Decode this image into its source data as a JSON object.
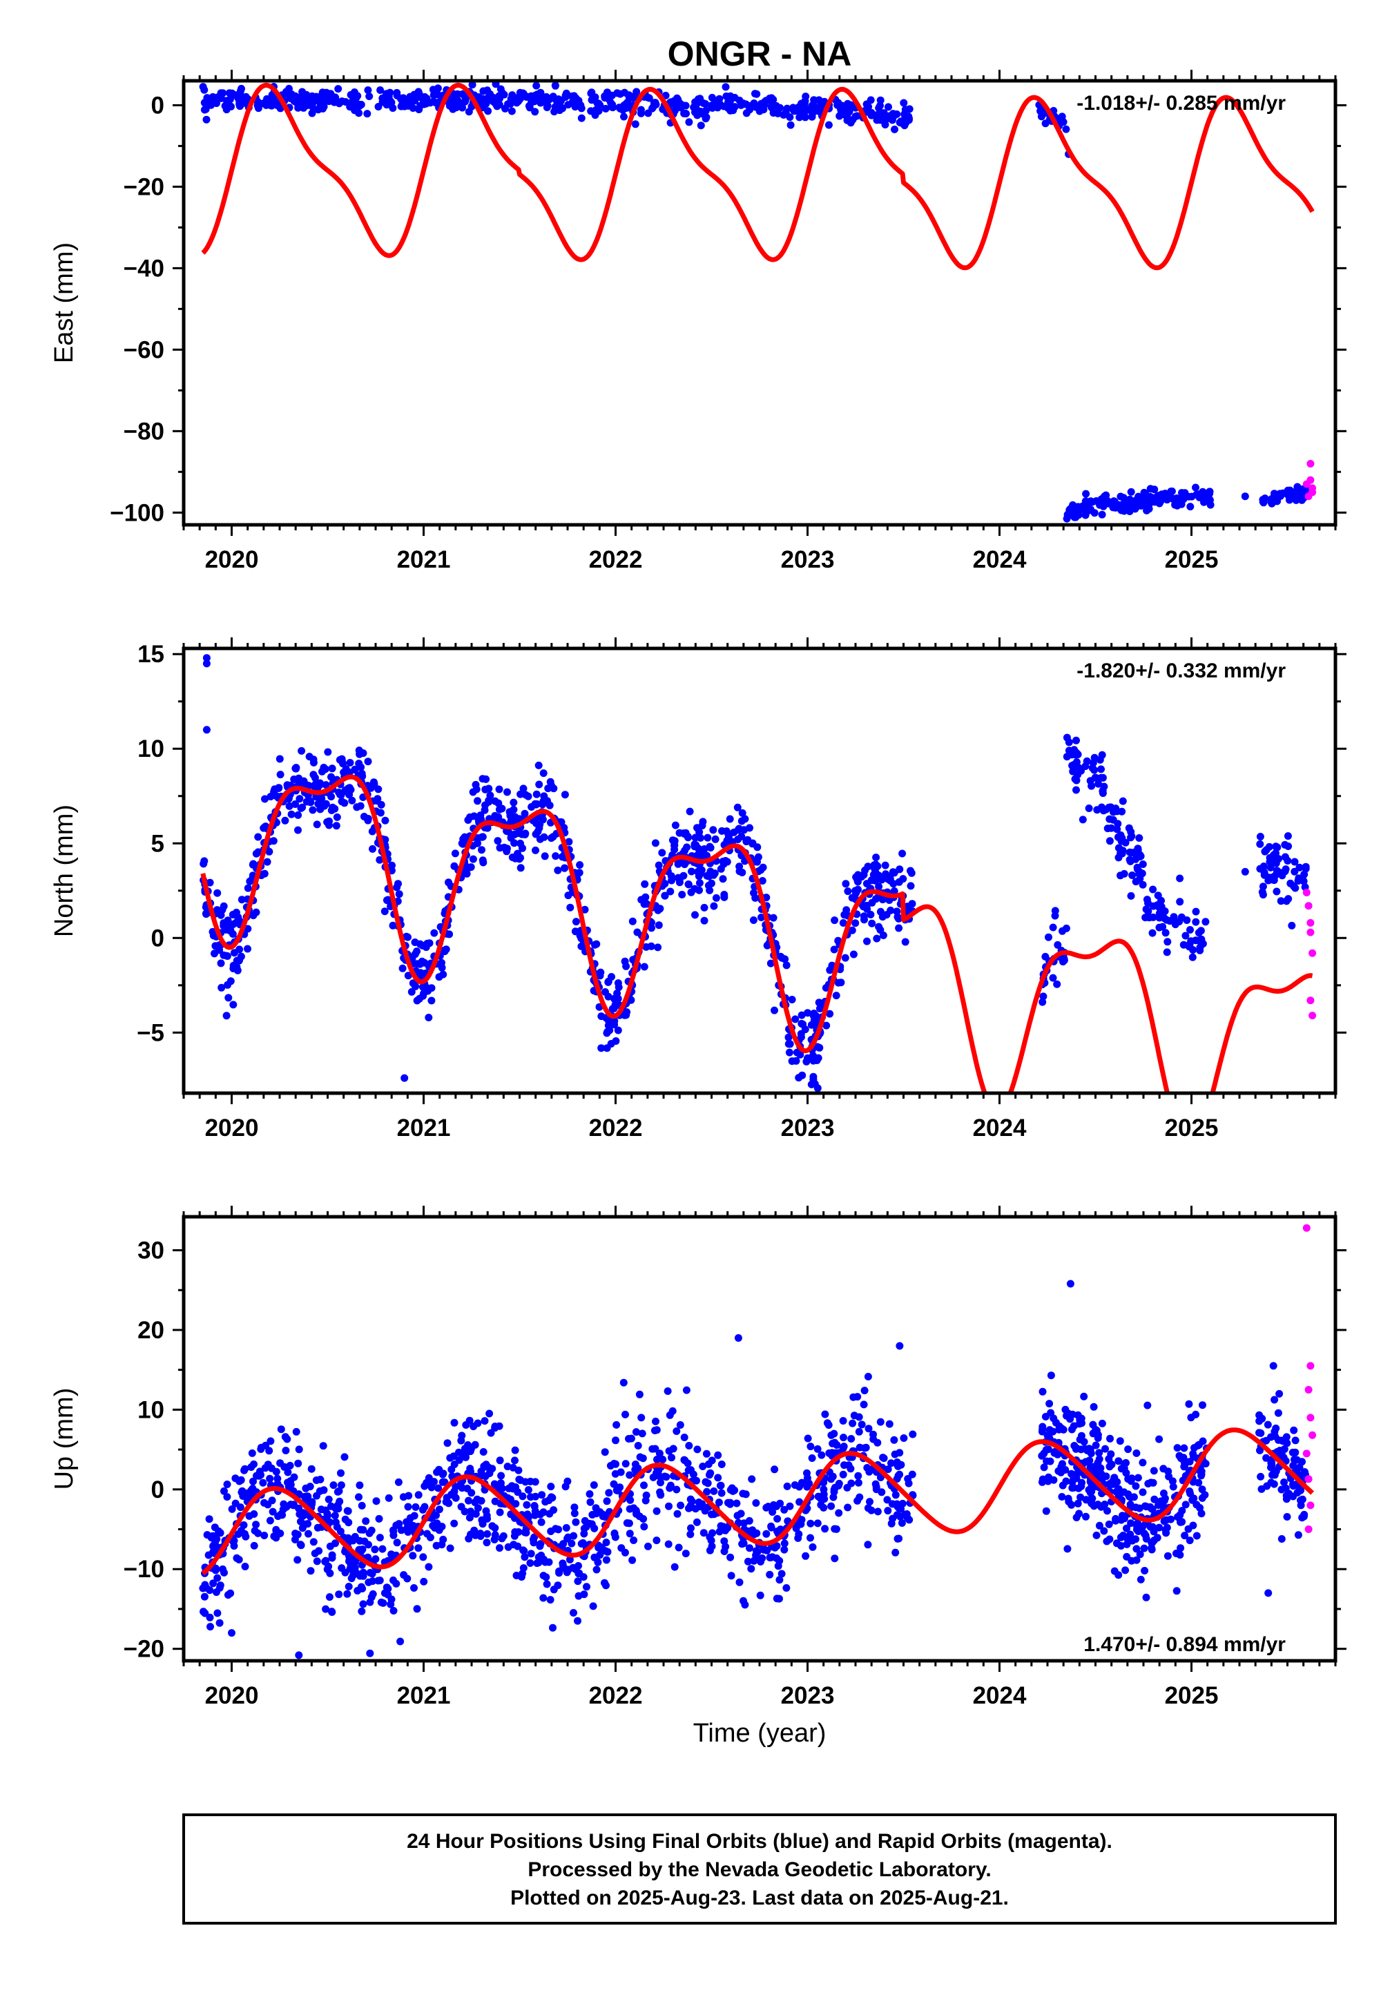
{
  "title": "ONGR - NA",
  "xlabel": "Time (year)",
  "footer": [
    "24 Hour Positions Using Final Orbits (blue) and Rapid Orbits (magenta).",
    "Processed by the Nevada Geodetic Laboratory.",
    "Plotted on 2025-Aug-23. Last data on 2025-Aug-21."
  ],
  "colors": {
    "final": "#0000ff",
    "rapid": "#ff00ff",
    "model": "#ff0000",
    "frame": "#000000"
  },
  "chart_data": [
    {
      "type": "scatter",
      "panel": "east",
      "ylabel": "East (mm)",
      "rate": "-1.018+/- 0.285 mm/yr",
      "rate_position": "top-right",
      "xlim": [
        2019.75,
        2025.75
      ],
      "ylim": [
        -103,
        6
      ],
      "xticks": [
        2020,
        2021,
        2022,
        2023,
        2024,
        2025
      ],
      "yticks": [
        0,
        -20,
        -40,
        -60,
        -80,
        -100
      ],
      "final_segments": [
        {
          "x0": 2019.85,
          "x1": 2021.5,
          "mean": [
            1,
            1.5
          ],
          "noise": 1.3,
          "count": 300
        },
        {
          "x0": 2021.5,
          "x1": 2022.5,
          "mean": [
            1.5,
            -1
          ],
          "noise": 1.6,
          "count": 160
        },
        {
          "x0": 2022.5,
          "x1": 2023.2,
          "mean": [
            0,
            -1
          ],
          "noise": 1.5,
          "count": 110
        },
        {
          "x0": 2023.2,
          "x1": 2023.55,
          "mean": [
            -1.5,
            -3
          ],
          "noise": 1.4,
          "count": 60
        },
        {
          "x0": 2024.2,
          "x1": 2024.35,
          "mean": [
            -2,
            -4
          ],
          "noise": 1.3,
          "count": 22
        },
        {
          "x0": 2024.35,
          "x1": 2024.9,
          "mean": [
            -99.5,
            -96
          ],
          "noise": 1.1,
          "count": 120
        },
        {
          "x0": 2024.9,
          "x1": 2025.1,
          "mean": [
            -97,
            -96
          ],
          "noise": 1.0,
          "count": 40
        },
        {
          "x0": 2025.35,
          "x1": 2025.6,
          "mean": [
            -97,
            -95
          ],
          "noise": 1.0,
          "count": 45
        }
      ],
      "final_outliers": [
        {
          "x": 2024.36,
          "y": -12
        },
        {
          "x": 2025.28,
          "y": -96
        }
      ],
      "rapid_points": [
        {
          "x": 2025.6,
          "y": -93
        },
        {
          "x": 2025.61,
          "y": -96
        },
        {
          "x": 2025.62,
          "y": -88
        },
        {
          "x": 2025.62,
          "y": -92
        },
        {
          "x": 2025.63,
          "y": -95
        },
        {
          "x": 2025.63,
          "y": -94
        }
      ],
      "model": {
        "x_start": 2019.85,
        "x_end": 2025.63,
        "segments": [
          {
            "x0": 2019.75,
            "x1": 2021.5,
            "offset": -16,
            "slope": 0
          },
          {
            "x0": 2021.5,
            "x1": 2023.5,
            "offset": -17,
            "slope": 0
          },
          {
            "x0": 2023.5,
            "x1": 2025.8,
            "offset": -19,
            "slope": 0
          }
        ],
        "annual": {
          "amplitude": 18,
          "phase": 0.0
        },
        "semiannual": {
          "amplitude": 6,
          "phase": 0.0
        }
      }
    },
    {
      "type": "scatter",
      "panel": "north",
      "ylabel": "North (mm)",
      "rate": "-1.820+/- 0.332 mm/yr",
      "rate_position": "top-right",
      "xlim": [
        2019.75,
        2025.75
      ],
      "ylim": [
        -8.2,
        15.3
      ],
      "xticks": [
        2020,
        2021,
        2022,
        2023,
        2024,
        2025
      ],
      "yticks": [
        15,
        10,
        5,
        0,
        -5
      ],
      "final_segments": [
        {
          "x0": 2019.85,
          "x1": 2023.55,
          "follow_model": true,
          "noise": 1.1,
          "count": 1100
        },
        {
          "x0": 2024.22,
          "x1": 2024.35,
          "follow_model": true,
          "noise": 1.0,
          "count": 28
        },
        {
          "x0": 2024.35,
          "x1": 2024.55,
          "mean": [
            9.5,
            7.5
          ],
          "noise": 0.8,
          "count": 50
        },
        {
          "x0": 2024.55,
          "x1": 2024.75,
          "mean": [
            6.5,
            3
          ],
          "noise": 0.9,
          "count": 55
        },
        {
          "x0": 2024.75,
          "x1": 2025.08,
          "mean": [
            1.5,
            0
          ],
          "noise": 0.8,
          "count": 55
        },
        {
          "x0": 2025.35,
          "x1": 2025.6,
          "mean": [
            4,
            3
          ],
          "noise": 0.8,
          "count": 60
        }
      ],
      "final_outliers": [
        {
          "x": 2019.87,
          "y": 14.8
        },
        {
          "x": 2019.87,
          "y": 14.5
        },
        {
          "x": 2019.87,
          "y": 11
        },
        {
          "x": 2020.9,
          "y": -7.4
        },
        {
          "x": 2025.28,
          "y": 3.5
        }
      ],
      "rapid_points": [
        {
          "x": 2025.6,
          "y": 2.4
        },
        {
          "x": 2025.61,
          "y": 1.7
        },
        {
          "x": 2025.62,
          "y": 0.8
        },
        {
          "x": 2025.62,
          "y": 0.3
        },
        {
          "x": 2025.63,
          "y": -0.8
        },
        {
          "x": 2025.62,
          "y": -3.3
        },
        {
          "x": 2025.63,
          "y": -4.1
        }
      ],
      "model": {
        "x_start": 2019.85,
        "x_end": 2025.63,
        "segments": [
          {
            "x0": 2019.75,
            "x1": 2021.0,
            "offset": 2.2,
            "slope": -1.82
          },
          {
            "x0": 2021.0,
            "x1": 2023.5,
            "offset": 2.2,
            "slope": -1.82
          },
          {
            "x0": 2023.5,
            "x1": 2025.8,
            "offset": 0.8,
            "slope": -1.82
          }
        ],
        "annual": {
          "amplitude": 4.6,
          "phase": 0.25
        },
        "semiannual": {
          "amplitude": 1.8,
          "phase": 0.1
        }
      }
    },
    {
      "type": "scatter",
      "panel": "up",
      "ylabel": "Up (mm)",
      "rate": "1.470+/- 0.894 mm/yr",
      "rate_position": "bottom-right",
      "xlim": [
        2019.75,
        2025.75
      ],
      "ylim": [
        -21.5,
        34.2
      ],
      "xticks": [
        2020,
        2021,
        2022,
        2023,
        2024,
        2025
      ],
      "yticks": [
        30,
        20,
        10,
        0,
        -10,
        -20
      ],
      "final_segments": [
        {
          "x0": 2019.85,
          "x1": 2023.55,
          "follow_model": true,
          "noise": 4.0,
          "count": 1150
        },
        {
          "x0": 2024.22,
          "x1": 2025.08,
          "follow_model": true,
          "noise": 3.8,
          "count": 380
        },
        {
          "x0": 2025.35,
          "x1": 2025.6,
          "follow_model": true,
          "noise": 3.4,
          "count": 90
        }
      ],
      "final_outliers": [
        {
          "x": 2020.0,
          "y": -18
        },
        {
          "x": 2020.35,
          "y": -20.8
        },
        {
          "x": 2024.37,
          "y": 25.8
        },
        {
          "x": 2022.64,
          "y": 19
        },
        {
          "x": 2023.48,
          "y": 18
        },
        {
          "x": 2025.4,
          "y": -13
        }
      ],
      "rapid_points": [
        {
          "x": 2025.6,
          "y": 32.8
        },
        {
          "x": 2025.62,
          "y": 15.5
        },
        {
          "x": 2025.61,
          "y": 12.5
        },
        {
          "x": 2025.62,
          "y": 9
        },
        {
          "x": 2025.63,
          "y": 6.8
        },
        {
          "x": 2025.6,
          "y": 4.5
        },
        {
          "x": 2025.61,
          "y": 1.3
        },
        {
          "x": 2025.62,
          "y": -2
        },
        {
          "x": 2025.61,
          "y": -5
        }
      ],
      "model": {
        "x_start": 2019.85,
        "x_end": 2025.63,
        "segments": [
          {
            "x0": 2019.75,
            "x1": 2025.8,
            "offset": -2.6,
            "slope": 1.47
          }
        ],
        "annual": {
          "amplitude": 5.2,
          "phase": 0.0
        },
        "semiannual": {
          "amplitude": 0.6,
          "phase": 0.0
        }
      }
    }
  ]
}
